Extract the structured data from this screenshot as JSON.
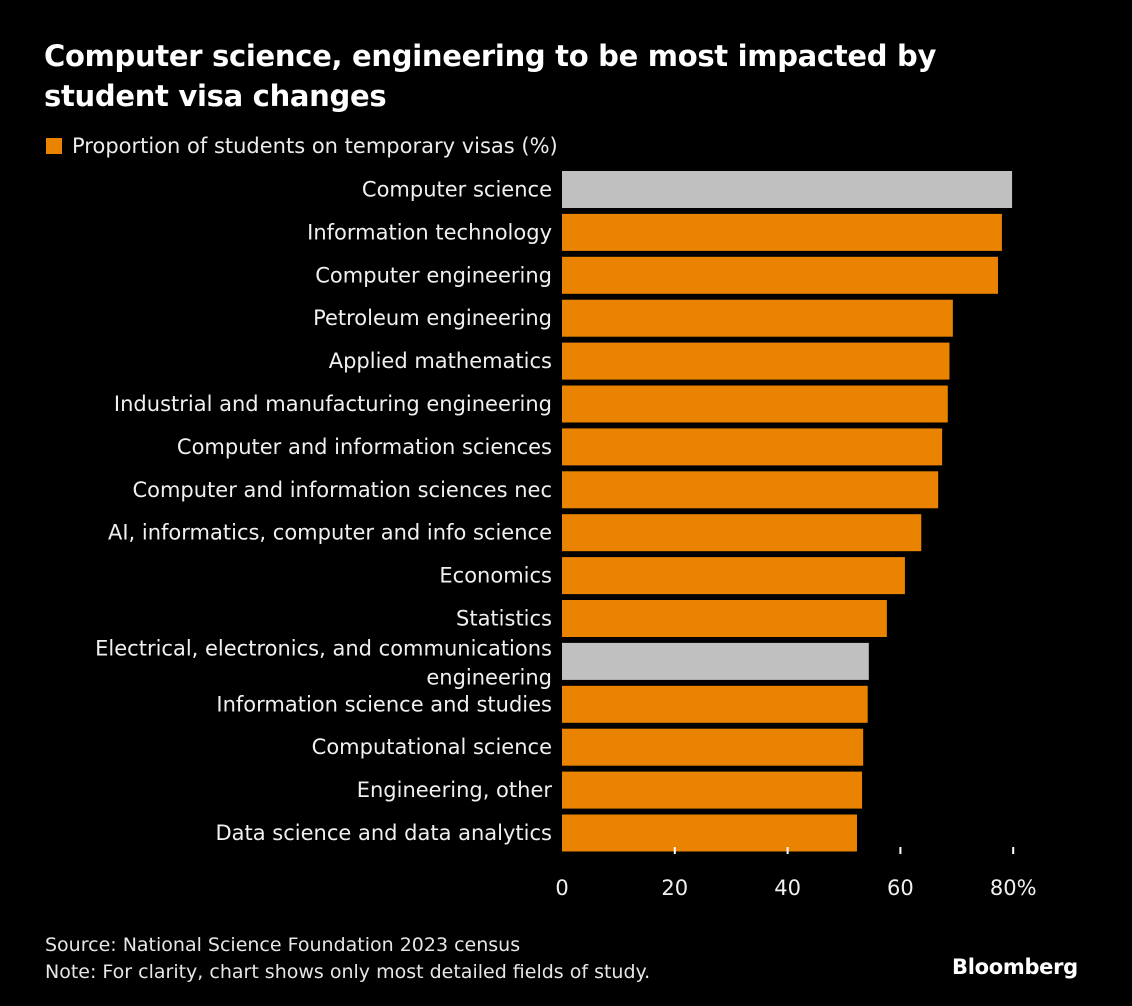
{
  "chart_data": {
    "type": "bar",
    "orientation": "horizontal",
    "title": "Computer science, engineering to be most impacted by student visa changes",
    "legend": [
      {
        "label": "Proportion of students on temporary visas (%)",
        "color": "#e98300"
      }
    ],
    "categories": [
      "Computer science",
      "Information technology",
      "Computer engineering",
      "Petroleum engineering",
      "Applied mathematics",
      "Industrial and manufacturing engineering",
      "Computer and information sciences",
      "Computer and information sciences nec",
      "AI, informatics, computer and info science",
      "Economics",
      "Statistics",
      "Electrical, electronics, and communications engineering",
      "Information science and studies",
      "Computational science",
      "Engineering, other",
      "Data science and data analytics"
    ],
    "category_lines": [
      [
        "Computer science"
      ],
      [
        "Information technology"
      ],
      [
        "Computer engineering"
      ],
      [
        "Petroleum engineering"
      ],
      [
        "Applied mathematics"
      ],
      [
        "Industrial and manufacturing engineering"
      ],
      [
        "Computer and information sciences"
      ],
      [
        "Computer and information sciences nec"
      ],
      [
        "AI, informatics, computer and info science"
      ],
      [
        "Economics"
      ],
      [
        "Statistics"
      ],
      [
        "Electrical, electronics, and communications",
        "engineering"
      ],
      [
        "Information science and studies"
      ],
      [
        "Computational science"
      ],
      [
        "Engineering, other"
      ],
      [
        "Data science and data analytics"
      ]
    ],
    "values": [
      79.8,
      78.0,
      77.3,
      69.3,
      68.7,
      68.4,
      67.4,
      66.7,
      63.7,
      60.8,
      57.6,
      54.4,
      54.2,
      53.4,
      53.2,
      52.3
    ],
    "highlighted": [
      true,
      false,
      false,
      false,
      false,
      false,
      false,
      false,
      false,
      false,
      false,
      true,
      false,
      false,
      false,
      false
    ],
    "colors": {
      "default": "#e98300",
      "highlight": "#c0c0c0",
      "background": "#000000",
      "text": "#ffffff"
    },
    "xlabel": "",
    "ylabel": "",
    "xlim": [
      0,
      80
    ],
    "xticks": [
      0,
      20,
      40,
      60,
      80
    ],
    "xtick_labels": [
      "0",
      "20",
      "40",
      "60",
      "80%"
    ],
    "grid": false
  },
  "header": {
    "title": "Computer science, engineering to be most impacted by student visa changes",
    "title_line1": "Computer science, engineering to be most impacted by",
    "title_line2": "student visa changes",
    "legend_label": "Proportion of students on temporary visas (%)"
  },
  "footer": {
    "source": "Source: National Science Foundation 2023 census",
    "note": "Note: For clarity, chart shows only most detailed fields of study.",
    "brand": "Bloomberg"
  }
}
